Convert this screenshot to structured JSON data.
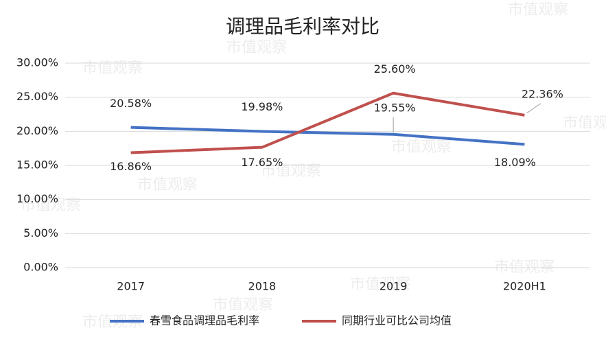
{
  "chart_data": {
    "type": "line",
    "title": "调理品毛利率对比",
    "categories": [
      "2017",
      "2018",
      "2019",
      "2020H1"
    ],
    "series": [
      {
        "name": "春雪食品调理品毛利率",
        "color": "#4472c4",
        "values": [
          20.58,
          19.98,
          19.55,
          18.09
        ],
        "value_labels": [
          "20.58%",
          "19.98%",
          "19.55%",
          "18.09%"
        ]
      },
      {
        "name": "同期行业可比公司均值",
        "color": "#c0504d",
        "values": [
          16.86,
          17.65,
          25.6,
          22.36
        ],
        "value_labels": [
          "16.86%",
          "17.65%",
          "25.60%",
          "22.36%"
        ]
      }
    ],
    "ylim": [
      0,
      30
    ],
    "yticks": [
      {
        "value": 0,
        "label": "0.00%"
      },
      {
        "value": 5,
        "label": "5.00%"
      },
      {
        "value": 10,
        "label": "10.00%"
      },
      {
        "value": 15,
        "label": "15.00%"
      },
      {
        "value": 20,
        "label": "20.00%"
      },
      {
        "value": 25,
        "label": "25.00%"
      },
      {
        "value": 30,
        "label": "30.00%"
      }
    ],
    "grid": true,
    "legend": "bottom",
    "watermark": "市值观察"
  }
}
